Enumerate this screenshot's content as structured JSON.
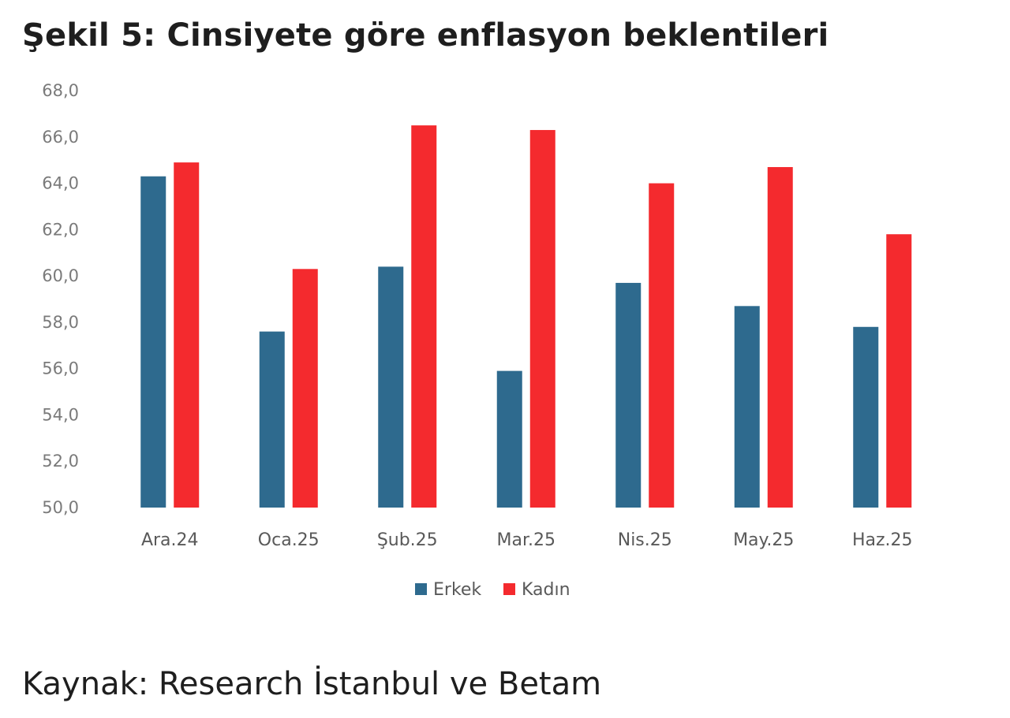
{
  "title": "Şekil 5: Cinsiyete göre enflasyon beklentileri",
  "source": "Kaynak: Research İstanbul ve Betam",
  "chart_data": {
    "type": "bar",
    "categories": [
      "Ara.24",
      "Oca.25",
      "Şub.25",
      "Mar.25",
      "Nis.25",
      "May.25",
      "Haz.25"
    ],
    "series": [
      {
        "name": "Erkek",
        "color": "#2e6a8e",
        "values": [
          64.3,
          57.6,
          60.4,
          55.9,
          59.7,
          58.7,
          57.8
        ]
      },
      {
        "name": "Kadın",
        "color": "#f42a2e",
        "values": [
          64.9,
          60.3,
          66.5,
          66.3,
          64.0,
          64.7,
          61.8
        ]
      }
    ],
    "yticks": [
      "50,0",
      "52,0",
      "54,0",
      "56,0",
      "58,0",
      "60,0",
      "62,0",
      "64,0",
      "66,0",
      "68,0"
    ],
    "ylim": [
      50,
      68
    ],
    "legend_position": "bottom",
    "grid": false
  }
}
